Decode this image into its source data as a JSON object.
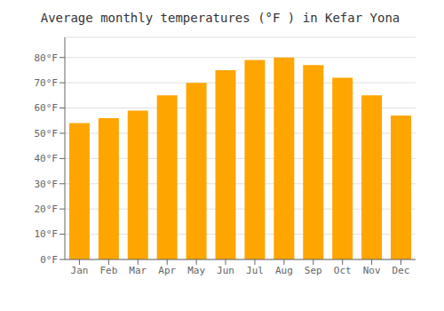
{
  "chart_data": {
    "type": "bar",
    "title": "Average monthly temperatures (°F ) in Kefar Yona",
    "categories": [
      "Jan",
      "Feb",
      "Mar",
      "Apr",
      "May",
      "Jun",
      "Jul",
      "Aug",
      "Sep",
      "Oct",
      "Nov",
      "Dec"
    ],
    "values": [
      54,
      56,
      59,
      65,
      70,
      75,
      79,
      80,
      77,
      72,
      65,
      57
    ],
    "color": "#FFA500",
    "ylim": [
      0,
      88
    ],
    "yticks": [
      {
        "value": 0,
        "label": "0°F"
      },
      {
        "value": 10,
        "label": "10°F"
      },
      {
        "value": 20,
        "label": "20°F"
      },
      {
        "value": 30,
        "label": "30°F"
      },
      {
        "value": 40,
        "label": "40°F"
      },
      {
        "value": 50,
        "label": "50°F"
      },
      {
        "value": 60,
        "label": "60°F"
      },
      {
        "value": 70,
        "label": "70°F"
      },
      {
        "value": 80,
        "label": "80°F"
      }
    ],
    "grid": true
  }
}
